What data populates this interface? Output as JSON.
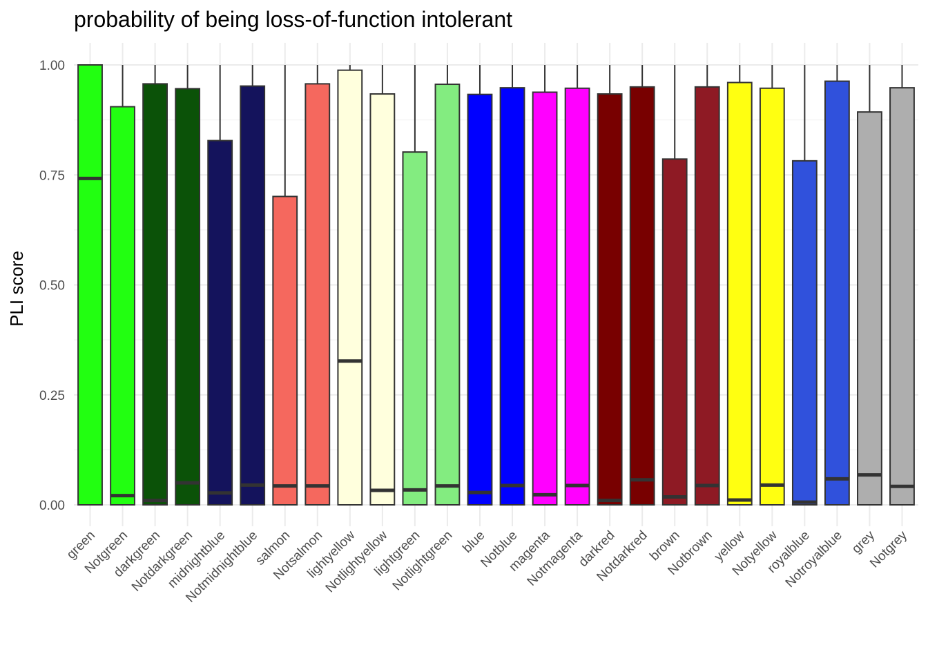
{
  "chart_data": {
    "type": "boxplot",
    "title": "probability of being loss-of-function intolerant",
    "xlabel": "",
    "ylabel": "PLI score",
    "ylim": [
      0,
      1
    ],
    "y_ticks": [
      "0.00",
      "0.25",
      "0.50",
      "0.75",
      "1.00"
    ],
    "grid": true,
    "legend": "none",
    "categories": [
      "green",
      "Notgreen",
      "darkgreen",
      "Notdarkgreen",
      "midnightblue",
      "Notmidnightblue",
      "salmon",
      "Notsalmon",
      "lightyellow",
      "Notlightyellow",
      "lightgreen",
      "Notlightgreen",
      "blue",
      "Notblue",
      "magenta",
      "Notmagenta",
      "darkred",
      "Notdarkred",
      "brown",
      "Notbrown",
      "yellow",
      "Notyellow",
      "royalblue",
      "Notroyalblue",
      "grey",
      "Notgrey"
    ],
    "fill_colors": [
      "#22ff11",
      "#22ff11",
      "#0b5208",
      "#0b5208",
      "#14135c",
      "#14135c",
      "#f5685e",
      "#f5685e",
      "#ffffdd",
      "#ffffdd",
      "#83ec80",
      "#83ec80",
      "#0000ff",
      "#0000ff",
      "#ff00ff",
      "#ff00ff",
      "#780000",
      "#780000",
      "#8e1a24",
      "#8e1a24",
      "#ffff11",
      "#ffff11",
      "#3051dc",
      "#3051dc",
      "#aeaeae",
      "#aeaeae"
    ],
    "q1": [
      0.0,
      0.0,
      0.0,
      0.0,
      0.0,
      0.0,
      0.0,
      0.0,
      0.0,
      0.0,
      0.0,
      0.0,
      0.0,
      0.0,
      0.0,
      0.0,
      0.0,
      0.0,
      0.0,
      0.0,
      0.0,
      0.0,
      0.0,
      0.0,
      0.0,
      0.0
    ],
    "median": [
      0.742,
      0.021,
      0.01,
      0.05,
      0.027,
      0.045,
      0.043,
      0.043,
      0.327,
      0.033,
      0.034,
      0.043,
      0.028,
      0.044,
      0.023,
      0.044,
      0.01,
      0.057,
      0.018,
      0.044,
      0.011,
      0.045,
      0.006,
      0.059,
      0.068,
      0.042
    ],
    "q3": [
      1.0,
      0.905,
      0.957,
      0.946,
      0.828,
      0.952,
      0.701,
      0.957,
      0.988,
      0.934,
      0.802,
      0.956,
      0.933,
      0.948,
      0.938,
      0.947,
      0.934,
      0.95,
      0.786,
      0.95,
      0.96,
      0.947,
      0.782,
      0.963,
      0.893,
      0.948
    ],
    "whisker_high": [
      1.0,
      1.0,
      1.0,
      1.0,
      1.0,
      1.0,
      1.0,
      1.0,
      1.0,
      1.0,
      1.0,
      1.0,
      1.0,
      1.0,
      1.0,
      1.0,
      1.0,
      1.0,
      1.0,
      1.0,
      1.0,
      1.0,
      1.0,
      1.0,
      1.0,
      1.0
    ]
  }
}
